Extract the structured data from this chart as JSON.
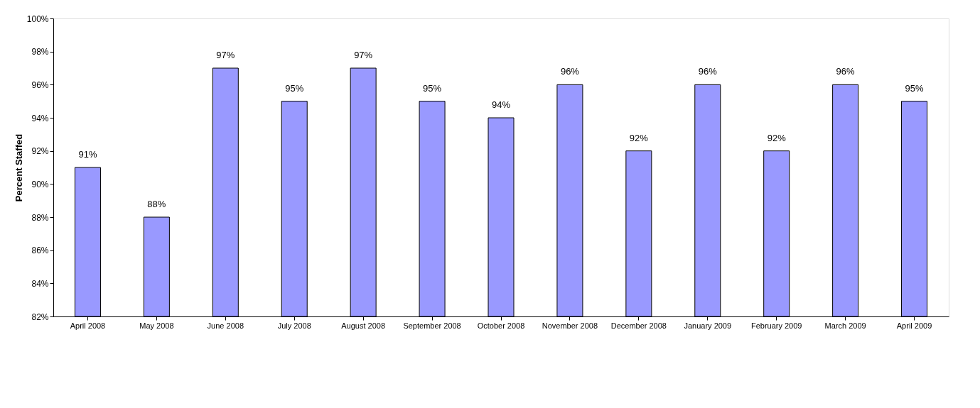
{
  "chart_data": {
    "type": "bar",
    "ylabel": "Percent Staffed",
    "categories": [
      "April 2008",
      "May 2008",
      "June 2008",
      "July 2008",
      "August 2008",
      "September 2008",
      "October 2008",
      "November 2008",
      "December 2008",
      "January 2009",
      "February 2009",
      "March 2009",
      "April 2009"
    ],
    "series": [
      {
        "color": "#9999ff",
        "values": [
          91,
          88,
          97,
          95,
          97,
          95,
          94,
          96,
          92,
          96,
          92,
          96,
          95
        ],
        "value_labels": [
          "91%",
          "88%",
          "97%",
          "95%",
          "97%",
          "95%",
          "94%",
          "96%",
          "92%",
          "96%",
          "92%",
          "96%",
          "95%"
        ]
      }
    ],
    "ylim": [
      82,
      100
    ],
    "yticks": [
      {
        "value": 82,
        "label": "82%"
      },
      {
        "value": 84,
        "label": "84%"
      },
      {
        "value": 86,
        "label": "86%"
      },
      {
        "value": 88,
        "label": "88%"
      },
      {
        "value": 90,
        "label": "90%"
      },
      {
        "value": 92,
        "label": "92%"
      },
      {
        "value": 94,
        "label": "94%"
      },
      {
        "value": 96,
        "label": "96%"
      },
      {
        "value": 98,
        "label": "98%"
      },
      {
        "value": 100,
        "label": "100%"
      }
    ],
    "grid": false
  }
}
